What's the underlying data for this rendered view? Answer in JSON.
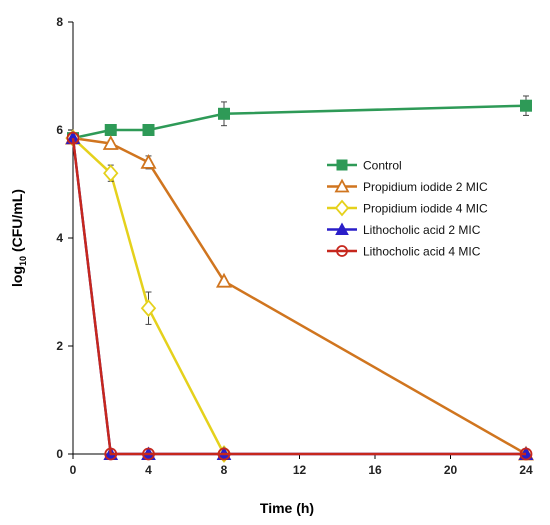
{
  "chart_data": {
    "type": "line",
    "title": "",
    "xlabel": "Time (h)",
    "ylabel_prefix": "log",
    "ylabel_sub": "10",
    "ylabel_suffix": " (CFU/mL)",
    "xlim": [
      0,
      24
    ],
    "ylim": [
      0,
      8
    ],
    "x_ticks": [
      0,
      4,
      8,
      12,
      16,
      20,
      24
    ],
    "y_ticks": [
      0,
      2,
      4,
      6,
      8
    ],
    "grid": false,
    "legend_position": "right",
    "series": [
      {
        "name": "Control",
        "color": "#2e9a57",
        "marker": "square",
        "x": [
          0,
          2,
          4,
          8,
          24
        ],
        "y": [
          5.85,
          6.0,
          6.0,
          6.3,
          6.45
        ],
        "err": [
          0,
          0.05,
          0.05,
          0.22,
          0.18
        ]
      },
      {
        "name": "Propidium iodide 2 MIC",
        "color": "#d0751f",
        "marker": "triangle-open",
        "x": [
          0,
          2,
          4,
          8,
          24
        ],
        "y": [
          5.85,
          5.75,
          5.4,
          3.2,
          0
        ],
        "err": [
          0,
          0.05,
          0.12,
          0.05,
          0
        ]
      },
      {
        "name": "Propidium iodide 4 MIC",
        "color": "#e5d11c",
        "marker": "diamond-open",
        "x": [
          0,
          2,
          4,
          8
        ],
        "y": [
          5.85,
          5.2,
          2.7,
          0
        ],
        "err": [
          0,
          0.15,
          0.3,
          0
        ]
      },
      {
        "name": "Lithocholic acid 2 MIC",
        "color": "#2a1ec8",
        "marker": "triangle",
        "x": [
          0,
          2,
          4,
          8,
          24
        ],
        "y": [
          5.85,
          0,
          0,
          0,
          0
        ],
        "err": [
          0,
          0,
          0,
          0,
          0
        ]
      },
      {
        "name": "Lithocholic acid 4 MIC",
        "color": "#c6271d",
        "marker": "circle-open",
        "x": [
          0,
          2,
          4,
          8,
          24
        ],
        "y": [
          5.85,
          0,
          0,
          0,
          0
        ],
        "err": [
          0,
          0,
          0,
          0,
          0
        ]
      }
    ]
  }
}
